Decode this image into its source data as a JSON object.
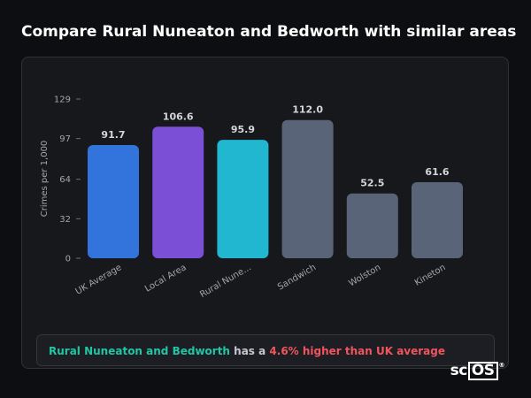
{
  "title": "Compare Rural Nuneaton and Bedworth with similar areas",
  "chart_data": {
    "type": "bar",
    "ylabel": "Crimes per 1,000",
    "ylim": [
      0,
      129
    ],
    "yticks": [
      0,
      32,
      64,
      97,
      129
    ],
    "categories": [
      "UK Average",
      "Local Area",
      "Rural Nune...",
      "Sandwich",
      "Wolston",
      "Kineton"
    ],
    "values": [
      91.7,
      106.6,
      95.9,
      112.0,
      52.5,
      61.6
    ],
    "value_labels": [
      "91.7",
      "106.6",
      "95.9",
      "112.0",
      "52.5",
      "61.6"
    ],
    "colors": [
      "#3273dc",
      "#7b4fd6",
      "#22b7d0",
      "#5a6478",
      "#5a6478",
      "#5a6478"
    ],
    "grid": false,
    "legend": "none"
  },
  "summary": {
    "area": "Rural Nuneaton and Bedworth",
    "middle": "has a",
    "difference": "4.6% higher than UK average"
  },
  "watermark": {
    "prefix": "sc",
    "boxed": "OS",
    "mark": "®"
  }
}
